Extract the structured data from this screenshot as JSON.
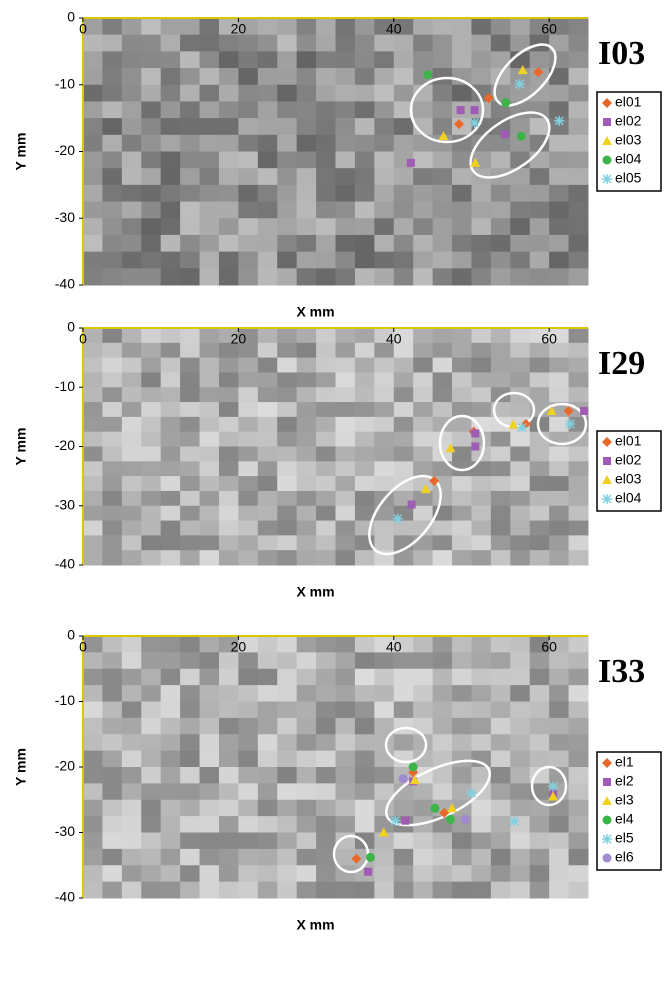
{
  "chart_data": [
    {
      "type": "scatter",
      "title": "I03",
      "xlabel": "X mm",
      "ylabel": "Y mm",
      "xlim": [
        0,
        65
      ],
      "ylim": [
        -40,
        0
      ],
      "xticks": [
        0,
        20,
        40,
        60
      ],
      "yticks": [
        0,
        -10,
        -20,
        -30,
        -40
      ],
      "series": [
        {
          "name": "el01",
          "color": "#e8692a",
          "marker": "diamond",
          "x": [
            48.4,
            52.2,
            58.6
          ],
          "values": [
            -15.9,
            -12,
            -8.1
          ]
        },
        {
          "name": "el02",
          "color": "#a05bb5",
          "marker": "square",
          "x": [
            48.6,
            50.4,
            42.2,
            54.3
          ],
          "values": [
            -13.8,
            -13.8,
            -21.7,
            -17.4
          ]
        },
        {
          "name": "el03",
          "color": "#f0d020",
          "marker": "triangle",
          "x": [
            46.4,
            50.5,
            56.6
          ],
          "values": [
            -17.7,
            -21.7,
            -7.8
          ]
        },
        {
          "name": "el04",
          "color": "#3cb44a",
          "marker": "circle",
          "x": [
            44.4,
            54.4,
            56.4
          ],
          "values": [
            -8.5,
            -12.7,
            -17.7
          ]
        },
        {
          "name": "el05",
          "color": "#80d0e0",
          "marker": "star",
          "x": [
            50.4,
            56.2,
            61.3
          ],
          "values": [
            -15.7,
            -9.9,
            -15.4
          ]
        }
      ]
    },
    {
      "type": "scatter",
      "title": "I29",
      "xlabel": "X mm",
      "ylabel": "Y mm",
      "xlim": [
        0,
        65
      ],
      "ylim": [
        -40,
        0
      ],
      "xticks": [
        0,
        20,
        40,
        60
      ],
      "yticks": [
        0,
        -10,
        -20,
        -30,
        -40
      ],
      "series": [
        {
          "name": "el01",
          "color": "#e8692a",
          "marker": "diamond",
          "x": [
            62.5,
            57,
            50.3,
            45.2
          ],
          "values": [
            -14,
            -16.2,
            -17.5,
            -25.8
          ]
        },
        {
          "name": "el02",
          "color": "#a05bb5",
          "marker": "square",
          "x": [
            64.5,
            50.5,
            50.5,
            42.3
          ],
          "values": [
            -14,
            -17.8,
            -20,
            -29.8
          ]
        },
        {
          "name": "el03",
          "color": "#f0d020",
          "marker": "triangle",
          "x": [
            60.3,
            55.4,
            47.3,
            44.1
          ],
          "values": [
            -14,
            -16.3,
            -20.3,
            -27.2
          ]
        },
        {
          "name": "el04",
          "color": "#80d0e0",
          "marker": "star",
          "x": [
            62.7,
            56.5,
            40.5
          ],
          "values": [
            -16.2,
            -16.8,
            -32.2
          ]
        }
      ]
    },
    {
      "type": "scatter",
      "title": "I33",
      "xlabel": "X mm",
      "ylabel": "Y mm",
      "xlim": [
        0,
        65
      ],
      "ylim": [
        -40,
        0
      ],
      "xticks": [
        0,
        20,
        40,
        60
      ],
      "yticks": [
        0,
        -10,
        -20,
        -30,
        -40
      ],
      "series": [
        {
          "name": "el1",
          "color": "#e8692a",
          "marker": "diamond",
          "x": [
            42.5,
            46.5,
            35.2,
            60.5
          ],
          "values": [
            -20.8,
            -27,
            -34,
            -23.6
          ]
        },
        {
          "name": "el2",
          "color": "#a05bb5",
          "marker": "square",
          "x": [
            42.5,
            41.5,
            36.7,
            60.5
          ],
          "values": [
            -22.2,
            -28.2,
            -36,
            -24
          ]
        },
        {
          "name": "el3",
          "color": "#f0d020",
          "marker": "triangle",
          "x": [
            38.7,
            42.7,
            47.5,
            60.5
          ],
          "values": [
            -30,
            -22,
            -26.3,
            -24.5
          ]
        },
        {
          "name": "el4",
          "color": "#3cb44a",
          "marker": "circle",
          "x": [
            42.5,
            45.3,
            47.3,
            37
          ],
          "values": [
            -20,
            -26.3,
            -28,
            -33.8
          ]
        },
        {
          "name": "el5",
          "color": "#80d0e0",
          "marker": "star",
          "x": [
            40.2,
            50,
            55.5,
            60.5
          ],
          "values": [
            -28.2,
            -24,
            -28.3,
            -23
          ]
        },
        {
          "name": "el6",
          "color": "#a08ad0",
          "marker": "circle",
          "x": [
            41.2,
            49.2
          ],
          "values": [
            -21.8,
            -28
          ]
        }
      ]
    }
  ]
}
